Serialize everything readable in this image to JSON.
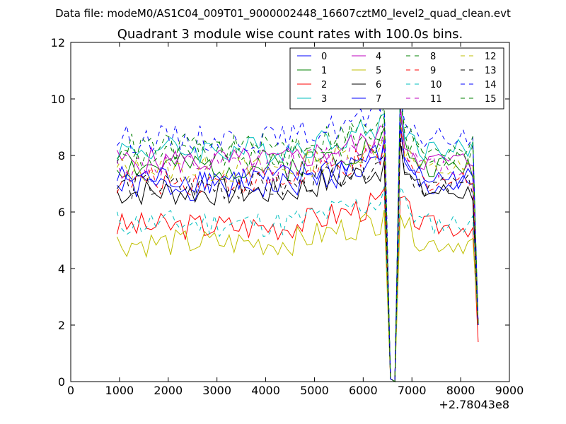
{
  "chart_data": {
    "type": "line",
    "suptitle": "Data file: modeM0/AS1C04_009T01_9000002448_16607cztM0_level2_quad_clean.evt",
    "title": "Quadrant 3 module wise count rates with 100.0s bins.",
    "xlabel": "",
    "ylabel": "",
    "x_offset_label": "+2.78043e8",
    "xlim": [
      0,
      9000
    ],
    "ylim": [
      0,
      12
    ],
    "xticks": [
      0,
      1000,
      2000,
      3000,
      4000,
      5000,
      6000,
      7000,
      8000,
      9000
    ],
    "yticks": [
      0,
      2,
      4,
      6,
      8,
      10,
      12
    ],
    "xtick_labels": [
      "0",
      "1000",
      "2000",
      "3000",
      "4000",
      "5000",
      "6000",
      "7000",
      "8000",
      "9000"
    ],
    "ytick_labels": [
      "0",
      "2",
      "4",
      "6",
      "8",
      "10",
      "12"
    ],
    "grid": false,
    "legend_position": "top-right",
    "x_start": 950,
    "x_step": 100,
    "series": [
      {
        "name": "0",
        "color": "#0000ff",
        "dash": "solid",
        "base": 6.9,
        "spike": 9.0,
        "end": 2.0,
        "seed": 1
      },
      {
        "name": "1",
        "color": "#008000",
        "dash": "solid",
        "base": 7.6,
        "spike": 9.4,
        "end": 2.0,
        "seed": 2
      },
      {
        "name": "2",
        "color": "#ff0000",
        "dash": "solid",
        "base": 5.5,
        "spike": 6.5,
        "end": 1.4,
        "seed": 3
      },
      {
        "name": "3",
        "color": "#00bfbf",
        "dash": "solid",
        "base": 8.2,
        "spike": 10.4,
        "end": 2.0,
        "seed": 4
      },
      {
        "name": "4",
        "color": "#bf00bf",
        "dash": "solid",
        "base": 7.8,
        "spike": 9.8,
        "end": 2.0,
        "seed": 5
      },
      {
        "name": "5",
        "color": "#bfbf00",
        "dash": "solid",
        "base": 4.9,
        "spike": 5.9,
        "end": 2.0,
        "seed": 6
      },
      {
        "name": "6",
        "color": "#000000",
        "dash": "solid",
        "base": 6.7,
        "spike": 8.5,
        "end": 2.0,
        "seed": 7
      },
      {
        "name": "7",
        "color": "#0000ff",
        "dash": "solid",
        "base": 7.2,
        "spike": 9.2,
        "end": 2.0,
        "seed": 8
      },
      {
        "name": "8",
        "color": "#008000",
        "dash": "dashed",
        "base": 8.0,
        "spike": 10.0,
        "end": 2.0,
        "seed": 9
      },
      {
        "name": "9",
        "color": "#ff0000",
        "dash": "dashed",
        "base": 7.1,
        "spike": 9.0,
        "end": 2.0,
        "seed": 10
      },
      {
        "name": "10",
        "color": "#00bfbf",
        "dash": "dashed",
        "base": 5.6,
        "spike": 6.9,
        "end": 2.0,
        "seed": 11
      },
      {
        "name": "11",
        "color": "#bf00bf",
        "dash": "dashed",
        "base": 7.6,
        "spike": 9.6,
        "end": 2.0,
        "seed": 12
      },
      {
        "name": "12",
        "color": "#bfbf00",
        "dash": "dashed",
        "base": 7.5,
        "spike": 9.4,
        "end": 2.0,
        "seed": 13
      },
      {
        "name": "13",
        "color": "#000000",
        "dash": "dashed",
        "base": 6.9,
        "spike": 8.7,
        "end": 2.0,
        "seed": 14
      },
      {
        "name": "14",
        "color": "#0000ff",
        "dash": "dashed",
        "base": 8.6,
        "spike": 10.1,
        "end": 2.0,
        "seed": 15
      },
      {
        "name": "15",
        "color": "#008000",
        "dash": "dashed",
        "base": 8.3,
        "spike": 10.0,
        "end": 2.0,
        "seed": 16
      }
    ]
  }
}
